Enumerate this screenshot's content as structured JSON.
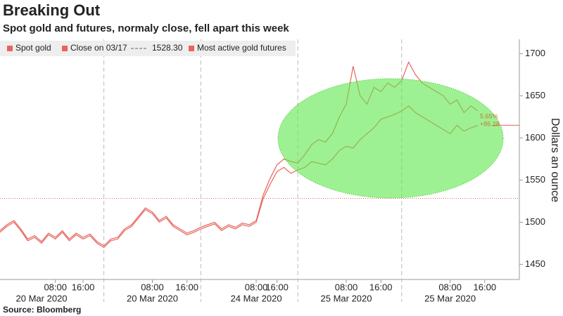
{
  "chart_data": {
    "type": "line",
    "title": "Breaking Out",
    "subtitle": "Spot gold and futures, normaly close, fell apart this week",
    "source": "Source: Bloomberg",
    "y_label": "Dollars an ounce",
    "categories": [
      null,
      null,
      null,
      null,
      null,
      null,
      null,
      null,
      "08:00",
      null,
      null,
      null,
      "16:00",
      null,
      null,
      null,
      null,
      null,
      null,
      null,
      null,
      null,
      "08:00",
      null,
      null,
      null,
      null,
      "16:00",
      null,
      null,
      null,
      null,
      null,
      null,
      null,
      null,
      null,
      "08:00",
      null,
      null,
      "16:00",
      null,
      null,
      null,
      null,
      null,
      null,
      null,
      null,
      null,
      "08:00",
      null,
      null,
      null,
      null,
      "16:00",
      null,
      null,
      null,
      null,
      null,
      null,
      null,
      null,
      null,
      "08:00",
      null,
      null,
      null,
      null,
      "16:00",
      null,
      null,
      null,
      null,
      null
    ],
    "date_labels": [
      {
        "value": 6,
        "label": "20 Mar 2020"
      },
      {
        "value": 22,
        "label": "20 Mar 2020"
      },
      {
        "value": 37,
        "label": "24 Mar 2020"
      },
      {
        "value": 50,
        "label": "25 Mar 2020"
      },
      {
        "value": 65,
        "label": "25 Mar 2020"
      }
    ],
    "series": [
      {
        "name": "Spot gold",
        "color": "#e8635a",
        "values": [
          1488,
          1495,
          1500,
          1490,
          1478,
          1482,
          1475,
          1485,
          1480,
          1488,
          1478,
          1485,
          1480,
          1484,
          1475,
          1470,
          1478,
          1480,
          1490,
          1495,
          1505,
          1515,
          1510,
          1500,
          1505,
          1495,
          1490,
          1485,
          1488,
          1492,
          1495,
          1498,
          1490,
          1495,
          1492,
          1497,
          1495,
          1500,
          1528,
          1545,
          1560,
          1565,
          1558,
          1562,
          1565,
          1572,
          1570,
          1568,
          1575,
          1585,
          1590,
          1588,
          1598,
          1605,
          1612,
          1622,
          1625,
          1628,
          1632,
          1638,
          1630,
          1625,
          1620,
          1615,
          1610,
          1605,
          1615,
          1608,
          1612,
          1615,
          null,
          null,
          null,
          null,
          null,
          null
        ]
      },
      {
        "name": "Most active gold futures",
        "color": "#e8635a",
        "values": [
          1490,
          1497,
          1502,
          1492,
          1480,
          1484,
          1477,
          1487,
          1482,
          1490,
          1480,
          1487,
          1482,
          1486,
          1477,
          1472,
          1480,
          1482,
          1492,
          1497,
          1507,
          1517,
          1512,
          1502,
          1507,
          1497,
          1492,
          1487,
          1490,
          1494,
          1497,
          1500,
          1492,
          1497,
          1494,
          1499,
          1497,
          1502,
          1532,
          1552,
          1568,
          1575,
          1572,
          1570,
          1580,
          1592,
          1598,
          1595,
          1605,
          1625,
          1640,
          1685,
          1650,
          1640,
          1660,
          1655,
          1665,
          1660,
          1668,
          1690,
          1675,
          1665,
          1660,
          1655,
          1650,
          1640,
          1645,
          1630,
          1638,
          1632,
          null,
          null,
          null,
          null,
          null,
          null
        ]
      }
    ],
    "reference_line": {
      "name": "Close on 03/17",
      "value": 1528.3,
      "label": "1528.30"
    },
    "annotations": [
      {
        "label": "5.65%"
      },
      {
        "label": "+86.28"
      }
    ],
    "ylim": [
      1432,
      1717
    ],
    "yticks": [
      1450,
      1500,
      1550,
      1600,
      1650,
      1700
    ]
  }
}
